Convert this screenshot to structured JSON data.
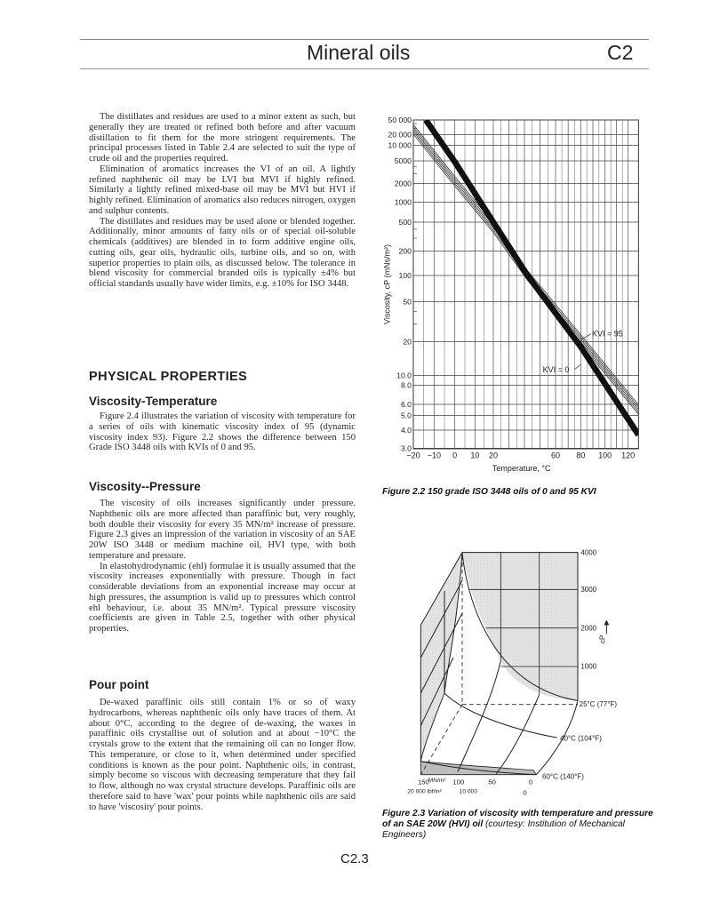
{
  "header": {
    "title": "Mineral oils",
    "section": "C2"
  },
  "intro": {
    "paragraphs": [
      "The distillates and residues are used to a minor extent as such, but generally they are treated or refined both before and after vacuum distillation to fit them for the more stringent requirements. The principal processes listed in Table 2.4 are selected to suit the type of crude oil and the properties required.",
      "Elimination of aromatics increases the VI of an oil. A lightly refined naphthenic oil may be LVI but MVI if highly refined. Similarly a lightly refined mixed-base oil may be MVI but HVI if highly refined. Elimination of aromatics also reduces nitrogen, oxygen and sulphur contents.",
      "The distillates and residues may be used alone or blended together. Additionally, minor amounts of fatty oils or of special oil-soluble chemicals (additives) are blended in to form additive engine oils, cutting oils, gear oils, hydraulic oils, turbine oils, and so on, with superior properties to plain oils, as discussed below. The tolerance in blend viscosity for commercial branded oils is typically ±4% but official standards usually have wider limits, e.g. ±10% for ISO 3448."
    ]
  },
  "physical_properties": {
    "heading": "PHYSICAL PROPERTIES",
    "viscosity_temperature": {
      "heading": "Viscosity-Temperature",
      "paragraphs": [
        "Figure 2.4 illustrates the variation of viscosity with temperature for a series of oils with kinematic viscosity index of 95 (dynamic viscosity index 93). Figure 2.2 shows the difference between 150 Grade ISO 3448 oils with KVIs of 0 and 95."
      ]
    },
    "viscosity_pressure": {
      "heading": "Viscosity--Pressure",
      "paragraphs": [
        "The viscosity of oils increases significantly under pressure. Naphthenic oils are more affected than paraffinic but, very roughly, both double their viscosity for every 35 MN/m² increase of pressure. Figure 2.3 gives an impression of the variation in viscosity of an SAE 20W ISO 3448 or medium machine oil, HVI type, with both temperature and pressure.",
        "In elastohydrodynamic (ehl) formulae it is usually assumed that the viscosity increases exponentially with pressure. Though in fact considerable deviations from an exponential increase may occur at high pressures, the assumption is valid up to pressures which control ehl behaviour, i.e. about 35 MN/m². Typical pressure viscosity coefficients are given in Table 2.5, together with other physical properties."
      ]
    },
    "pour_point": {
      "heading": "Pour point",
      "paragraphs": [
        "De-waxed paraffinic oils still contain 1% or so of waxy hydrocarbons, whereas naphthenic oils only have traces of them. At about 0°C, according to the degree of de-waxing, the waxes in paraffinic oils crystallise out of solution and at about −10°C the crystals grow to the extent that the remaining oil can no longer flow. This temperature, or close to it, when determined under specified conditions is known as the pour point. Naphthenic oils, in contrast, simply become so viscous with decreasing temperature that they fail to flow, although no wax crystal structure develops. Paraffinic oils are therefore said to have 'wax' pour points while naphthenic oils are said to have 'viscosity' pour points."
      ]
    }
  },
  "chart_data": {
    "type": "line",
    "title": "",
    "caption": "Figure 2.2  150 grade ISO 3448 oils of 0 and 95 KVI",
    "xlabel": "Temperature, °C",
    "ylabel": "Viscosity, cP (mNs/m²)",
    "xlim": [
      -20,
      125
    ],
    "ylim": [
      3,
      50000
    ],
    "yscale": "log (viscosity-temperature chart scale)",
    "grid": true,
    "x_ticks": [
      {
        "v": -20,
        "label": "−20"
      },
      {
        "v": -10,
        "label": "−10"
      },
      {
        "v": 0,
        "label": "0"
      },
      {
        "v": 10,
        "label": "10"
      },
      {
        "v": 20,
        "label": "20"
      },
      {
        "v": 60,
        "label": "60"
      },
      {
        "v": 80,
        "label": "80"
      },
      {
        "v": 100,
        "label": "100"
      },
      {
        "v": 120,
        "label": "120"
      }
    ],
    "y_ticks": [
      {
        "v": 50000,
        "label": "50 000"
      },
      {
        "v": 20000,
        "label": "20 000"
      },
      {
        "v": 10000,
        "label": "10 000"
      },
      {
        "v": 5000,
        "label": "5000"
      },
      {
        "v": 2000,
        "label": "2000"
      },
      {
        "v": 1000,
        "label": "1000"
      },
      {
        "v": 500,
        "label": "500"
      },
      {
        "v": 200,
        "label": "200"
      },
      {
        "v": 100,
        "label": "100"
      },
      {
        "v": 50,
        "label": "50"
      },
      {
        "v": 20,
        "label": "20"
      },
      {
        "v": 10,
        "label": "10.0"
      },
      {
        "v": 8,
        "label": "8.0"
      },
      {
        "v": 6,
        "label": "6.0"
      },
      {
        "v": 5,
        "label": "5.0"
      },
      {
        "v": 4,
        "label": "4.0"
      },
      {
        "v": 3,
        "label": "3.0"
      }
    ],
    "series": [
      {
        "name": "KVI = 0",
        "style": "thick solid band",
        "color": "#111111",
        "x": [
          -14,
          0,
          20,
          42,
          80,
          125
        ],
        "y": [
          50000,
          4800,
          500,
          100,
          18,
          3.7
        ]
      },
      {
        "name": "KVI = 95",
        "style": "hatched band",
        "color": "#333333",
        "x": [
          -20,
          0,
          20,
          42,
          80,
          125
        ],
        "y": [
          28000,
          2200,
          420,
          100,
          21,
          5.5
        ]
      }
    ]
  },
  "figure_2_3": {
    "caption_bold": "Figure 2.3 Variation of viscosity with temperature and pressure of an SAE 20W (HVI) oil",
    "caption_normal": " (courtesy: Institution of Mechanical Engineers)",
    "viscosity_ticks": [
      "4000",
      "3000",
      "2000",
      "1000"
    ],
    "viscosity_unit": "cP",
    "temperature_labels": [
      "25°C (77°F)",
      "40°C (104°F)",
      "60°C (140°F)"
    ],
    "pressure_labels_si": [
      "150",
      "MN/m²",
      "100",
      "50",
      "0"
    ],
    "pressure_labels_imperial": [
      "20 000 lbf/in²",
      "10 000",
      "0"
    ]
  },
  "footer": {
    "page": "C2.3"
  }
}
